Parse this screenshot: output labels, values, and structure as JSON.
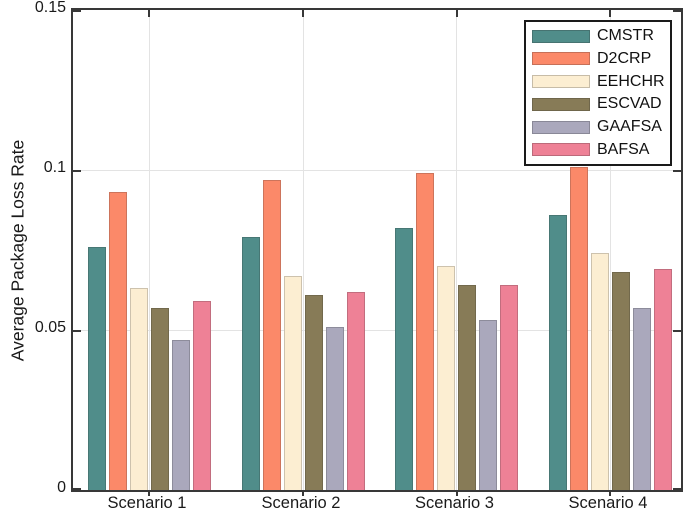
{
  "figure": {
    "background": "#ffffff",
    "axis_color": "#383838",
    "grid_color": "#e3e3e3",
    "text_color": "#1a1a1a"
  },
  "chart_data": {
    "type": "bar",
    "title": "",
    "xlabel": "",
    "ylabel": "Average Package Loss Rate",
    "categories": [
      "Scenario 1",
      "Scenario 2",
      "Scenario 3",
      "Scenario 4"
    ],
    "series": [
      {
        "name": "CMSTR",
        "color": "#508d8a",
        "values": [
          0.076,
          0.079,
          0.082,
          0.086
        ]
      },
      {
        "name": "D2CRP",
        "color": "#fb8969",
        "values": [
          0.093,
          0.097,
          0.099,
          0.101
        ]
      },
      {
        "name": "EEHCHR",
        "color": "#fceed2",
        "values": [
          0.063,
          0.067,
          0.07,
          0.074
        ]
      },
      {
        "name": "ESCVAD",
        "color": "#877b57",
        "values": [
          0.057,
          0.061,
          0.064,
          0.068
        ]
      },
      {
        "name": "GAAFSA",
        "color": "#aaa8bc",
        "values": [
          0.047,
          0.051,
          0.053,
          0.057
        ]
      },
      {
        "name": "BAFSA",
        "color": "#ee8196",
        "values": [
          0.059,
          0.062,
          0.064,
          0.069
        ]
      }
    ],
    "ylim": [
      0,
      0.15
    ],
    "yticks": [
      0,
      0.05,
      0.1,
      0.15
    ],
    "ytick_labels": [
      "0",
      "0.05",
      "0.1",
      "0.15"
    ],
    "grid": true,
    "legend_position": "top-right"
  }
}
